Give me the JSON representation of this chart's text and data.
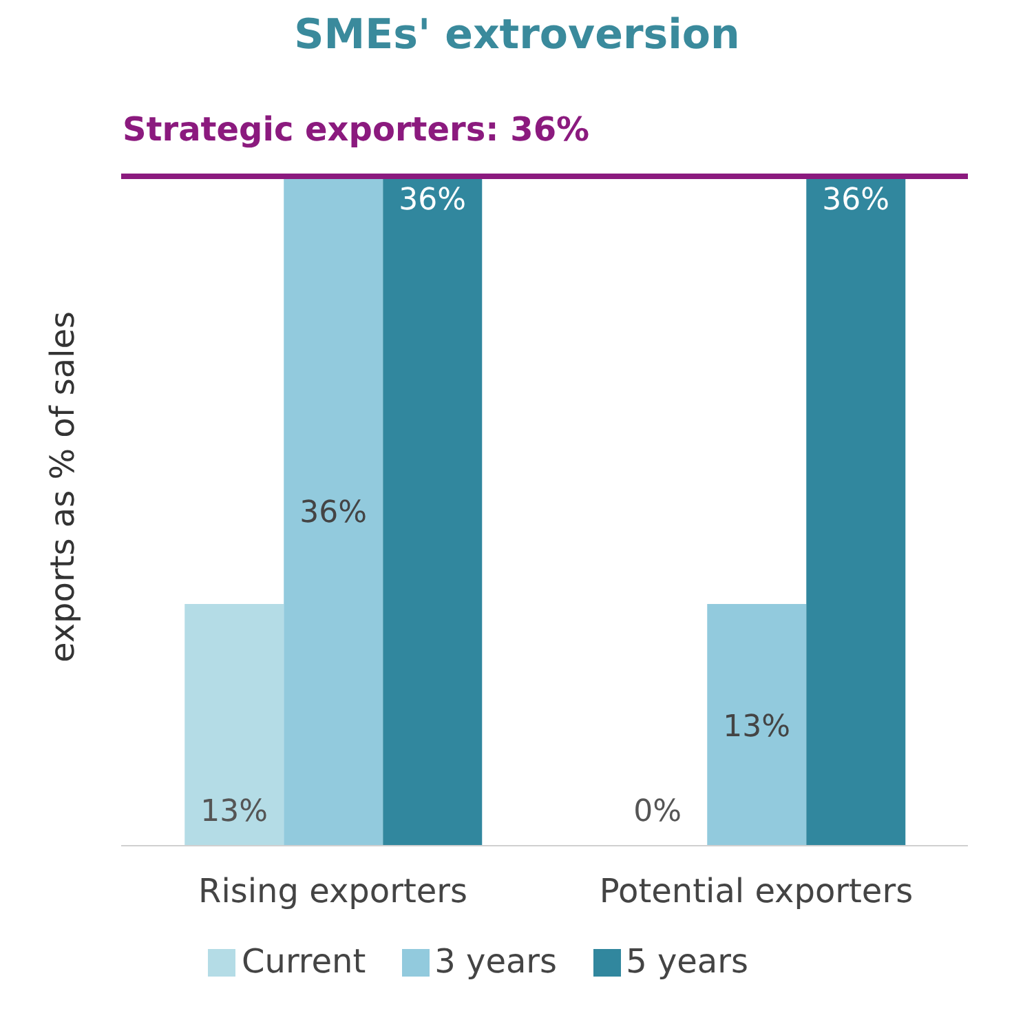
{
  "chart_data": {
    "type": "bar",
    "title": "SMEs' extroversion",
    "ylabel": "exports as % of sales",
    "categories": [
      "Rising exporters",
      "Potential exporters"
    ],
    "series": [
      {
        "name": "Current",
        "color": "#b4dce6",
        "values": [
          13,
          0
        ],
        "value_labels": [
          "13%",
          "0%"
        ]
      },
      {
        "name": "3 years",
        "color": "#92cadd",
        "values": [
          36,
          13
        ],
        "value_labels": [
          "36%",
          "13%"
        ]
      },
      {
        "name": "5 years",
        "color": "#31879e",
        "values": [
          36,
          36
        ],
        "value_labels": [
          "36%",
          "36%"
        ]
      }
    ],
    "tick_labels": "x",
    "legend": "bottom",
    "ref_lines": [
      {
        "axis": "y",
        "value": 36,
        "label": "Strategic exporters: 36%",
        "color": "#8b1a7e"
      }
    ]
  }
}
